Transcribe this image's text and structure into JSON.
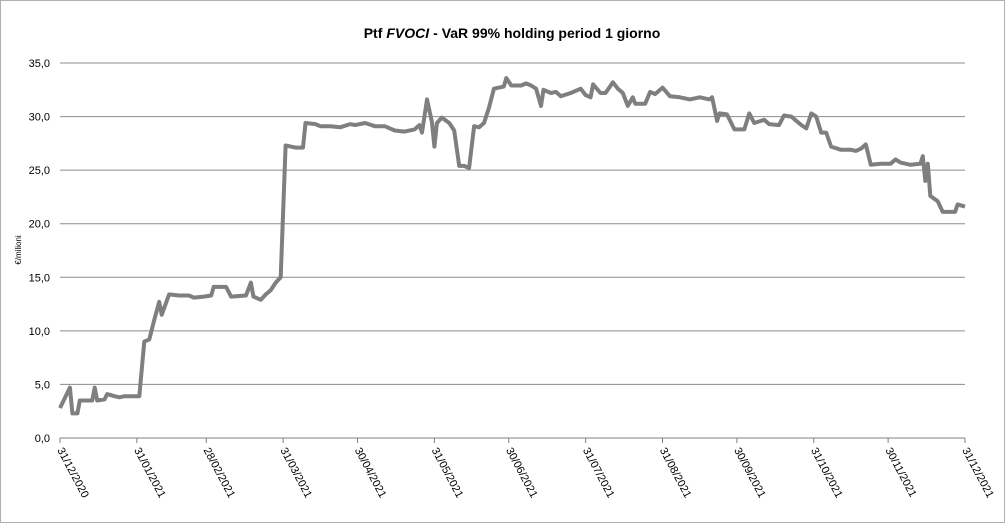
{
  "chart_data": {
    "type": "line",
    "title": [
      "Ptf",
      "FVOCI",
      "- VaR 99% holding period 1 giorno"
    ],
    "y_label": "€/milioni",
    "color": "#7f7f7f",
    "x": [
      "2020-12-31",
      "2021-01-04",
      "2021-01-05",
      "2021-01-07",
      "2021-01-08",
      "2021-01-13",
      "2021-01-14",
      "2021-01-15",
      "2021-01-18",
      "2021-01-19",
      "2021-01-22",
      "2021-01-24",
      "2021-01-26",
      "2021-02-01",
      "2021-02-03",
      "2021-02-05",
      "2021-02-07",
      "2021-02-09",
      "2021-02-10",
      "2021-02-13",
      "2021-02-17",
      "2021-02-21",
      "2021-02-23",
      "2021-02-27",
      "2021-03-02",
      "2021-03-03",
      "2021-03-08",
      "2021-03-10",
      "2021-03-16",
      "2021-03-18",
      "2021-03-19",
      "2021-03-22",
      "2021-03-24",
      "2021-03-26",
      "2021-03-28",
      "2021-03-30",
      "2021-04-01",
      "2021-04-05",
      "2021-04-08",
      "2021-04-09",
      "2021-04-13",
      "2021-04-15",
      "2021-04-19",
      "2021-04-23",
      "2021-04-27",
      "2021-04-29",
      "2021-05-03",
      "2021-05-07",
      "2021-05-11",
      "2021-05-15",
      "2021-05-19",
      "2021-05-23",
      "2021-05-25",
      "2021-05-26",
      "2021-05-28",
      "2021-05-30",
      "2021-05-31",
      "2021-06-01",
      "2021-06-03",
      "2021-06-06",
      "2021-06-08",
      "2021-06-10",
      "2021-06-12",
      "2021-06-14",
      "2021-06-16",
      "2021-06-18",
      "2021-06-20",
      "2021-06-22",
      "2021-06-24",
      "2021-06-28",
      "2021-06-29",
      "2021-07-01",
      "2021-07-05",
      "2021-07-07",
      "2021-07-09",
      "2021-07-11",
      "2021-07-13",
      "2021-07-14",
      "2021-07-17",
      "2021-07-19",
      "2021-07-21",
      "2021-07-25",
      "2021-07-29",
      "2021-07-31",
      "2021-08-02",
      "2021-08-03",
      "2021-08-06",
      "2021-08-08",
      "2021-08-11",
      "2021-08-13",
      "2021-08-15",
      "2021-08-17",
      "2021-08-19",
      "2021-08-20",
      "2021-08-24",
      "2021-08-26",
      "2021-08-28",
      "2021-08-31",
      "2021-09-03",
      "2021-09-07",
      "2021-09-11",
      "2021-09-15",
      "2021-09-19",
      "2021-09-20",
      "2021-09-22",
      "2021-09-23",
      "2021-09-26",
      "2021-09-29",
      "2021-10-03",
      "2021-10-05",
      "2021-10-07",
      "2021-10-11",
      "2021-10-13",
      "2021-10-17",
      "2021-10-19",
      "2021-10-22",
      "2021-10-26",
      "2021-10-28",
      "2021-10-30",
      "2021-11-01",
      "2021-11-03",
      "2021-11-05",
      "2021-11-07",
      "2021-11-11",
      "2021-11-15",
      "2021-11-17",
      "2021-11-19",
      "2021-11-21",
      "2021-11-23",
      "2021-11-27",
      "2021-12-01",
      "2021-12-03",
      "2021-12-05",
      "2021-12-09",
      "2021-12-13",
      "2021-12-14",
      "2021-12-15",
      "2021-12-16",
      "2021-12-17",
      "2021-12-20",
      "2021-12-22",
      "2021-12-25",
      "2021-12-27",
      "2021-12-28",
      "2021-12-31"
    ],
    "values": [
      2.8,
      4.7,
      2.3,
      2.3,
      3.5,
      3.5,
      4.7,
      3.5,
      3.6,
      4.1,
      3.9,
      3.8,
      3.9,
      3.9,
      9,
      9.2,
      11,
      12.7,
      11.5,
      13.4,
      13.3,
      13.3,
      13.1,
      13.2,
      13.3,
      14.1,
      14.1,
      13.2,
      13.3,
      14.5,
      13.2,
      12.9,
      13.4,
      13.8,
      14.5,
      15,
      27.3,
      27.1,
      27.1,
      29.4,
      29.3,
      29.1,
      29.1,
      29,
      29.3,
      29.2,
      29.4,
      29.1,
      29.1,
      28.7,
      28.6,
      28.8,
      29.2,
      28.5,
      31.6,
      29.5,
      27.2,
      29.4,
      29.9,
      29.4,
      28.7,
      25.4,
      25.4,
      25.2,
      29.1,
      29,
      29.4,
      30.8,
      32.6,
      32.8,
      33.6,
      32.9,
      32.9,
      33.1,
      32.9,
      32.6,
      31,
      32.5,
      32.2,
      32.3,
      31.9,
      32.2,
      32.6,
      32,
      31.8,
      33,
      32.2,
      32.2,
      33.2,
      32.6,
      32.2,
      31,
      31.8,
      31.2,
      31.2,
      32.3,
      32.1,
      32.7,
      31.9,
      31.8,
      31.6,
      31.8,
      31.6,
      31.8,
      29.6,
      30.3,
      30.2,
      28.8,
      28.8,
      30.3,
      29.4,
      29.7,
      29.3,
      29.2,
      30.1,
      30,
      29.2,
      28.9,
      30.3,
      30,
      28.5,
      28.5,
      27.2,
      26.9,
      26.9,
      26.8,
      27,
      27.4,
      25.5,
      25.6,
      25.6,
      26,
      25.7,
      25.5,
      25.6,
      26.3,
      24,
      25.6,
      22.6,
      22.1,
      21.1,
      21.1,
      21.1,
      21.8,
      21.6
    ],
    "xlim": [
      "2020-12-31",
      "2021-12-31"
    ],
    "xticks": [
      {
        "value": "2020-12-31",
        "label": "31/12/2020"
      },
      {
        "value": "2021-01-31",
        "label": "31/01/2021"
      },
      {
        "value": "2021-02-28",
        "label": "28/02/2021"
      },
      {
        "value": "2021-03-31",
        "label": "31/03/2021"
      },
      {
        "value": "2021-04-30",
        "label": "30/04/2021"
      },
      {
        "value": "2021-05-31",
        "label": "31/05/2021"
      },
      {
        "value": "2021-06-30",
        "label": "30/06/2021"
      },
      {
        "value": "2021-07-31",
        "label": "31/07/2021"
      },
      {
        "value": "2021-08-31",
        "label": "31/08/2021"
      },
      {
        "value": "2021-09-30",
        "label": "30/09/2021"
      },
      {
        "value": "2021-10-31",
        "label": "31/10/2021"
      },
      {
        "value": "2021-11-30",
        "label": "30/11/2021"
      },
      {
        "value": "2021-12-31",
        "label": "31/12/2021"
      }
    ],
    "ylim": [
      0,
      35
    ],
    "yticks": [
      {
        "value": 0,
        "label": "0,0"
      },
      {
        "value": 5,
        "label": "5,0"
      },
      {
        "value": 10,
        "label": "10,0"
      },
      {
        "value": 15,
        "label": "15,0"
      },
      {
        "value": 20,
        "label": "20,0"
      },
      {
        "value": 25,
        "label": "25,0"
      },
      {
        "value": 30,
        "label": "30,0"
      },
      {
        "value": 35,
        "label": "35,0"
      }
    ],
    "grid": true
  }
}
